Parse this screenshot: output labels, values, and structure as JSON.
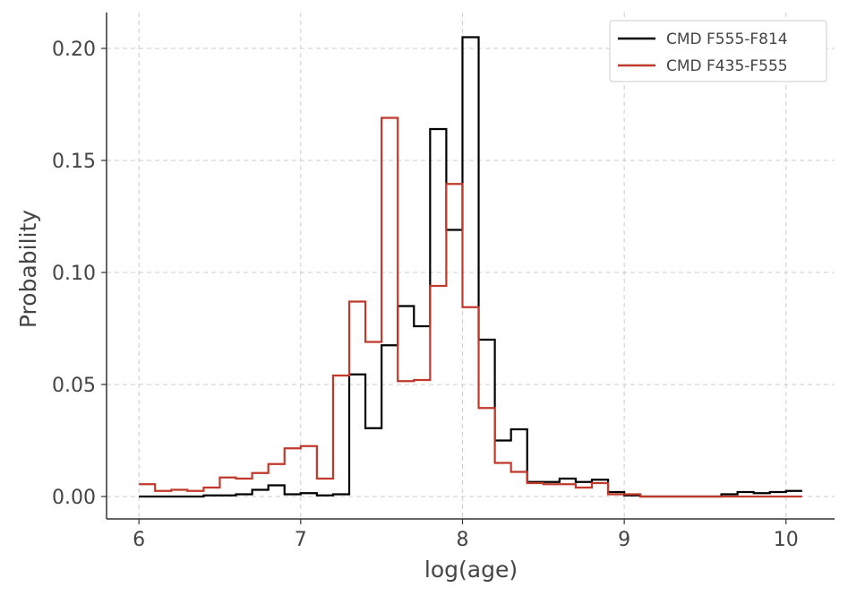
{
  "chart_data": {
    "type": "line",
    "style": "step-histogram",
    "xlabel": "log(age)",
    "ylabel": "Probability",
    "xlim": [
      5.8,
      10.3
    ],
    "ylim": [
      -0.01,
      0.216
    ],
    "xticks": [
      6,
      7,
      8,
      9,
      10
    ],
    "xtick_labels": [
      "6",
      "7",
      "8",
      "9",
      "10"
    ],
    "yticks": [
      0.0,
      0.05,
      0.1,
      0.15,
      0.2
    ],
    "ytick_labels": [
      "0.00",
      "0.05",
      "0.10",
      "0.15",
      "0.20"
    ],
    "grid": true,
    "legend_position": "top-right",
    "bin_edges": [
      6.0,
      6.1,
      6.2,
      6.3,
      6.4,
      6.5,
      6.6,
      6.7,
      6.8,
      6.9,
      7.0,
      7.1,
      7.2,
      7.3,
      7.4,
      7.5,
      7.6,
      7.7,
      7.8,
      7.9,
      8.0,
      8.1,
      8.2,
      8.3,
      8.4,
      8.5,
      8.6,
      8.7,
      8.8,
      8.9,
      9.0,
      9.1,
      9.2,
      9.3,
      9.4,
      9.5,
      9.6,
      9.7,
      9.8,
      9.9,
      10.0,
      10.1
    ],
    "series": [
      {
        "name": "CMD F555-F814",
        "color": "#000000",
        "values": [
          0.0,
          0.0,
          0.0,
          0.0,
          0.0005,
          0.0005,
          0.001,
          0.003,
          0.005,
          0.001,
          0.0015,
          0.0005,
          0.001,
          0.0545,
          0.0305,
          0.0675,
          0.085,
          0.076,
          0.164,
          0.119,
          0.205,
          0.07,
          0.025,
          0.03,
          0.0065,
          0.0065,
          0.008,
          0.0065,
          0.0075,
          0.002,
          0.0005,
          0.0,
          0.0,
          0.0,
          0.0,
          0.0,
          0.001,
          0.002,
          0.0015,
          0.002,
          0.0025,
          0.0025
        ]
      },
      {
        "name": "CMD F435-F555",
        "color": "#c0392b",
        "values": [
          0.0055,
          0.0025,
          0.003,
          0.0025,
          0.004,
          0.0085,
          0.008,
          0.0105,
          0.0145,
          0.0215,
          0.0225,
          0.008,
          0.054,
          0.087,
          0.069,
          0.169,
          0.0515,
          0.052,
          0.094,
          0.1395,
          0.0845,
          0.0395,
          0.015,
          0.011,
          0.006,
          0.0055,
          0.0055,
          0.004,
          0.006,
          0.001,
          0.001,
          0.0,
          0.0,
          0.0,
          0.0,
          0.0,
          0.0,
          0.0,
          0.0,
          0.0,
          0.0,
          0.0
        ]
      }
    ]
  }
}
